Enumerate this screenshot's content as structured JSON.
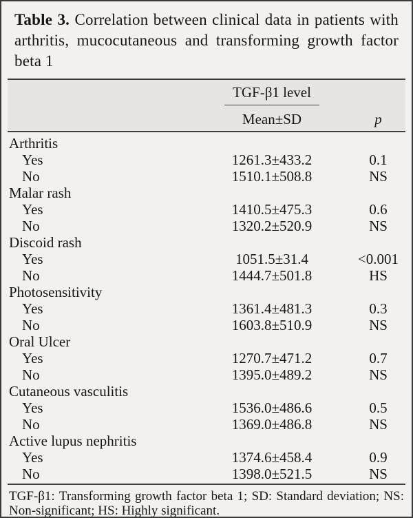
{
  "title": {
    "label": "Table 3.",
    "text": "Correlation between clinical data in patients with arthritis, mucocutaneous and transforming growth factor beta 1"
  },
  "table": {
    "span_header": "TGF-β1 level",
    "columns": {
      "mean": "Mean±SD",
      "p": "p"
    },
    "groups": [
      {
        "name": "Arthritis",
        "rows": [
          {
            "label": "Yes",
            "mean": "1261.3±433.2",
            "p": "0.1"
          },
          {
            "label": "No",
            "mean": "1510.1±508.8",
            "p": "NS"
          }
        ]
      },
      {
        "name": "Malar rash",
        "rows": [
          {
            "label": "Yes",
            "mean": "1410.5±475.3",
            "p": "0.6"
          },
          {
            "label": "No",
            "mean": "1320.2±520.9",
            "p": "NS"
          }
        ]
      },
      {
        "name": "Discoid rash",
        "rows": [
          {
            "label": "Yes",
            "mean": "1051.5±31.4",
            "p": "<0.001"
          },
          {
            "label": "No",
            "mean": "1444.7±501.8",
            "p": "HS"
          }
        ]
      },
      {
        "name": "Photosensitivity",
        "rows": [
          {
            "label": "Yes",
            "mean": "1361.4±481.3",
            "p": "0.3"
          },
          {
            "label": "No",
            "mean": "1603.8±510.9",
            "p": "NS"
          }
        ]
      },
      {
        "name": "Oral Ulcer",
        "rows": [
          {
            "label": "Yes",
            "mean": "1270.7±471.2",
            "p": "0.7"
          },
          {
            "label": "No",
            "mean": "1395.0±489.2",
            "p": "NS"
          }
        ]
      },
      {
        "name": "Cutaneous vasculitis",
        "rows": [
          {
            "label": "Yes",
            "mean": "1536.0±486.6",
            "p": "0.5"
          },
          {
            "label": "No",
            "mean": "1369.0±486.8",
            "p": "NS"
          }
        ]
      },
      {
        "name": "Active lupus nephritis",
        "rows": [
          {
            "label": "Yes",
            "mean": "1374.6±458.4",
            "p": "0.9"
          },
          {
            "label": "No",
            "mean": "1398.0±521.5",
            "p": "NS"
          }
        ]
      }
    ]
  },
  "footnote": "TGF-β1: Transforming growth factor beta 1; SD: Standard deviation; NS: Non-significant; HS: Highly significant.",
  "colors": {
    "page_background": "#f2f1ef",
    "header_band_background": "#e6e5e3",
    "rule": "#3f3f3f",
    "text": "#161616"
  }
}
